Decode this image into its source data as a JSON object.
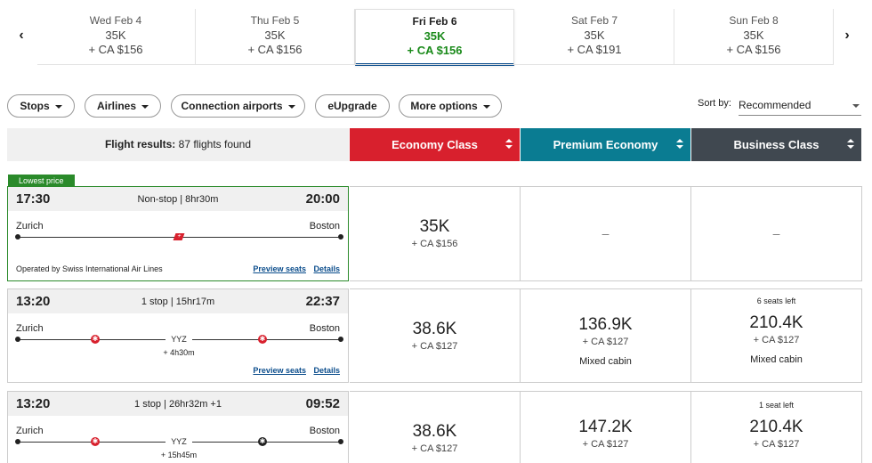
{
  "dates": [
    {
      "day": "Wed Feb 4",
      "points": "35K",
      "cash": "+ CA $156"
    },
    {
      "day": "Thu Feb 5",
      "points": "35K",
      "cash": "+ CA $156"
    },
    {
      "day": "Fri Feb 6",
      "points": "35K",
      "cash": "+ CA $156"
    },
    {
      "day": "Sat Feb 7",
      "points": "35K",
      "cash": "+ CA $191"
    },
    {
      "day": "Sun Feb 8",
      "points": "35K",
      "cash": "+ CA $156"
    }
  ],
  "nav": {
    "prev": "‹",
    "next": "›"
  },
  "filters": {
    "stops": "Stops",
    "airlines": "Airlines",
    "connection": "Connection airports",
    "eupgrade": "eUpgrade",
    "more": "More options"
  },
  "sort": {
    "label": "Sort by:",
    "value": "Recommended"
  },
  "header": {
    "results_label": "Flight results:",
    "results_count": "87 flights found",
    "economy": "Economy Class",
    "premium": "Premium Economy",
    "business": "Business Class"
  },
  "colors": {
    "economy": "#d8202d",
    "premium": "#0a7c92",
    "business": "#404850",
    "lowest": "#2a8a2a"
  },
  "flights": [
    {
      "badge": "Lowest price",
      "dep": "17:30",
      "arr": "20:00",
      "duration": "Non-stop | 8hr30m",
      "origin": "Zurich",
      "dest": "Boston",
      "operated": "Operated by Swiss International Air Lines",
      "preview": "Preview seats",
      "details": "Details",
      "economy": {
        "points": "35K",
        "cash": "+ CA $156"
      },
      "premium": {
        "dash": "–"
      },
      "business": {
        "dash": "–"
      }
    },
    {
      "dep": "13:20",
      "arr": "22:37",
      "duration": "1 stop | 15hr17m",
      "origin": "Zurich",
      "dest": "Boston",
      "via": "YYZ",
      "layover": "+ 4h30m",
      "preview": "Preview seats",
      "details": "Details",
      "economy": {
        "points": "38.6K",
        "cash": "+ CA $127"
      },
      "premium": {
        "points": "136.9K",
        "cash": "+ CA $127",
        "note": "Mixed cabin"
      },
      "business": {
        "seats": "6 seats left",
        "points": "210.4K",
        "cash": "+ CA $127",
        "note": "Mixed cabin"
      }
    },
    {
      "dep": "13:20",
      "arr": "09:52",
      "duration": "1 stop | 26hr32m +1",
      "origin": "Zurich",
      "dest": "Boston",
      "via": "YYZ",
      "layover": "+ 15h45m",
      "economy": {
        "points": "38.6K",
        "cash": "+ CA $127"
      },
      "premium": {
        "points": "147.2K",
        "cash": "+ CA $127"
      },
      "business": {
        "seats": "1 seat left",
        "points": "210.4K",
        "cash": "+ CA $127"
      }
    }
  ]
}
